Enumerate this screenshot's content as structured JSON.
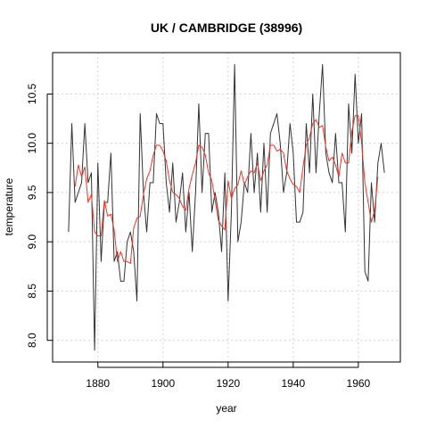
{
  "chart_data": {
    "type": "line",
    "title": "UK / CAMBRIDGE (38996)",
    "xlabel": "year",
    "ylabel": "temperature",
    "xlim": [
      1866.1,
      1972.9
    ],
    "ylim": [
      7.78,
      10.92
    ],
    "x_ticks": [
      1880,
      1900,
      1920,
      1940,
      1960
    ],
    "y_ticks": [
      8.0,
      8.5,
      9.0,
      9.5,
      10.0,
      10.5
    ],
    "grid": true,
    "series": [
      {
        "color": "#333333",
        "x": [
          1871,
          1872,
          1873,
          1874,
          1875,
          1876,
          1877,
          1878,
          1879,
          1880,
          1881,
          1882,
          1883,
          1884,
          1885,
          1886,
          1887,
          1888,
          1889,
          1890,
          1891,
          1892,
          1893,
          1894,
          1895,
          1896,
          1897,
          1898,
          1899,
          1900,
          1901,
          1902,
          1903,
          1904,
          1905,
          1906,
          1907,
          1908,
          1909,
          1910,
          1911,
          1912,
          1913,
          1914,
          1915,
          1916,
          1917,
          1918,
          1919,
          1920,
          1921,
          1922,
          1923,
          1924,
          1925,
          1926,
          1927,
          1928,
          1929,
          1930,
          1931,
          1932,
          1933,
          1934,
          1935,
          1936,
          1937,
          1938,
          1939,
          1940,
          1941,
          1942,
          1943,
          1944,
          1945,
          1946,
          1947,
          1948,
          1949,
          1950,
          1951,
          1952,
          1953,
          1954,
          1955,
          1956,
          1957,
          1958,
          1959,
          1960,
          1961,
          1962,
          1963,
          1964,
          1965,
          1966,
          1967,
          1968
        ],
        "values": [
          9.1,
          10.2,
          9.4,
          9.5,
          9.6,
          10.2,
          9.6,
          9.7,
          7.9,
          9.8,
          8.8,
          9.4,
          9.4,
          9.9,
          8.8,
          8.9,
          8.6,
          8.6,
          9.0,
          9.1,
          8.9,
          8.4,
          10.3,
          9.5,
          9.1,
          9.6,
          9.6,
          10.3,
          10.2,
          10.2,
          9.6,
          9.3,
          9.8,
          9.2,
          9.4,
          9.7,
          9.1,
          9.5,
          8.9,
          9.5,
          10.4,
          9.5,
          10.1,
          10.1,
          9.3,
          9.5,
          9.3,
          8.9,
          9.7,
          8.4,
          9.3,
          10.8,
          9.0,
          9.2,
          9.6,
          9.5,
          10.1,
          9.5,
          9.9,
          9.3,
          10.0,
          9.3,
          10.1,
          10.2,
          10.3,
          10.0,
          9.5,
          9.7,
          10.2,
          9.9,
          9.2,
          9.2,
          9.3,
          10.2,
          9.7,
          10.5,
          9.7,
          10.3,
          10.8,
          9.9,
          9.7,
          9.6,
          10.1,
          9.6,
          9.6,
          9.1,
          10.4,
          9.9,
          10.7,
          10.0,
          10.3,
          8.7,
          8.6,
          9.6,
          9.2,
          9.8,
          10.0,
          9.7
        ]
      },
      {
        "color": "#e0382e",
        "x": [
          1873,
          1874,
          1875,
          1876,
          1877,
          1878,
          1879,
          1880,
          1881,
          1882,
          1883,
          1884,
          1885,
          1886,
          1887,
          1888,
          1889,
          1890,
          1891,
          1892,
          1893,
          1894,
          1895,
          1896,
          1897,
          1898,
          1899,
          1900,
          1901,
          1902,
          1903,
          1904,
          1905,
          1906,
          1907,
          1908,
          1909,
          1910,
          1911,
          1912,
          1913,
          1914,
          1915,
          1916,
          1917,
          1918,
          1919,
          1920,
          1921,
          1922,
          1923,
          1924,
          1925,
          1926,
          1927,
          1928,
          1929,
          1930,
          1931,
          1932,
          1933,
          1934,
          1935,
          1936,
          1937,
          1938,
          1939,
          1940,
          1941,
          1942,
          1943,
          1944,
          1945,
          1946,
          1947,
          1948,
          1949,
          1950,
          1951,
          1952,
          1953,
          1954,
          1955,
          1956,
          1957,
          1958,
          1959,
          1960,
          1961,
          1962,
          1963,
          1964,
          1965,
          1966
        ],
        "values": [
          9.56,
          9.78,
          9.66,
          9.76,
          9.4,
          9.48,
          9.1,
          9.06,
          9.06,
          9.42,
          9.26,
          9.28,
          9.12,
          8.8,
          8.9,
          8.8,
          8.8,
          8.78,
          9.14,
          9.24,
          9.26,
          9.48,
          9.64,
          9.72,
          9.88,
          9.98,
          9.98,
          9.92,
          9.82,
          9.62,
          9.5,
          9.48,
          9.44,
          9.36,
          9.32,
          9.54,
          9.68,
          9.8,
          9.98,
          9.96,
          9.88,
          9.7,
          9.62,
          9.42,
          9.22,
          9.16,
          9.12,
          9.62,
          9.44,
          9.54,
          9.58,
          9.72,
          9.58,
          9.66,
          9.72,
          9.7,
          9.8,
          9.62,
          9.72,
          9.78,
          9.98,
          9.98,
          9.92,
          9.94,
          9.9,
          9.72,
          9.64,
          9.58,
          9.56,
          9.5,
          9.76,
          9.98,
          10.06,
          10.2,
          10.24,
          10.16,
          10.18,
          9.96,
          9.82,
          9.86,
          9.78,
          9.66,
          9.9,
          9.8,
          9.8,
          10.12,
          10.28,
          10.28,
          10.0,
          9.6,
          9.4,
          9.2,
          9.32,
          9.66
        ]
      }
    ]
  }
}
